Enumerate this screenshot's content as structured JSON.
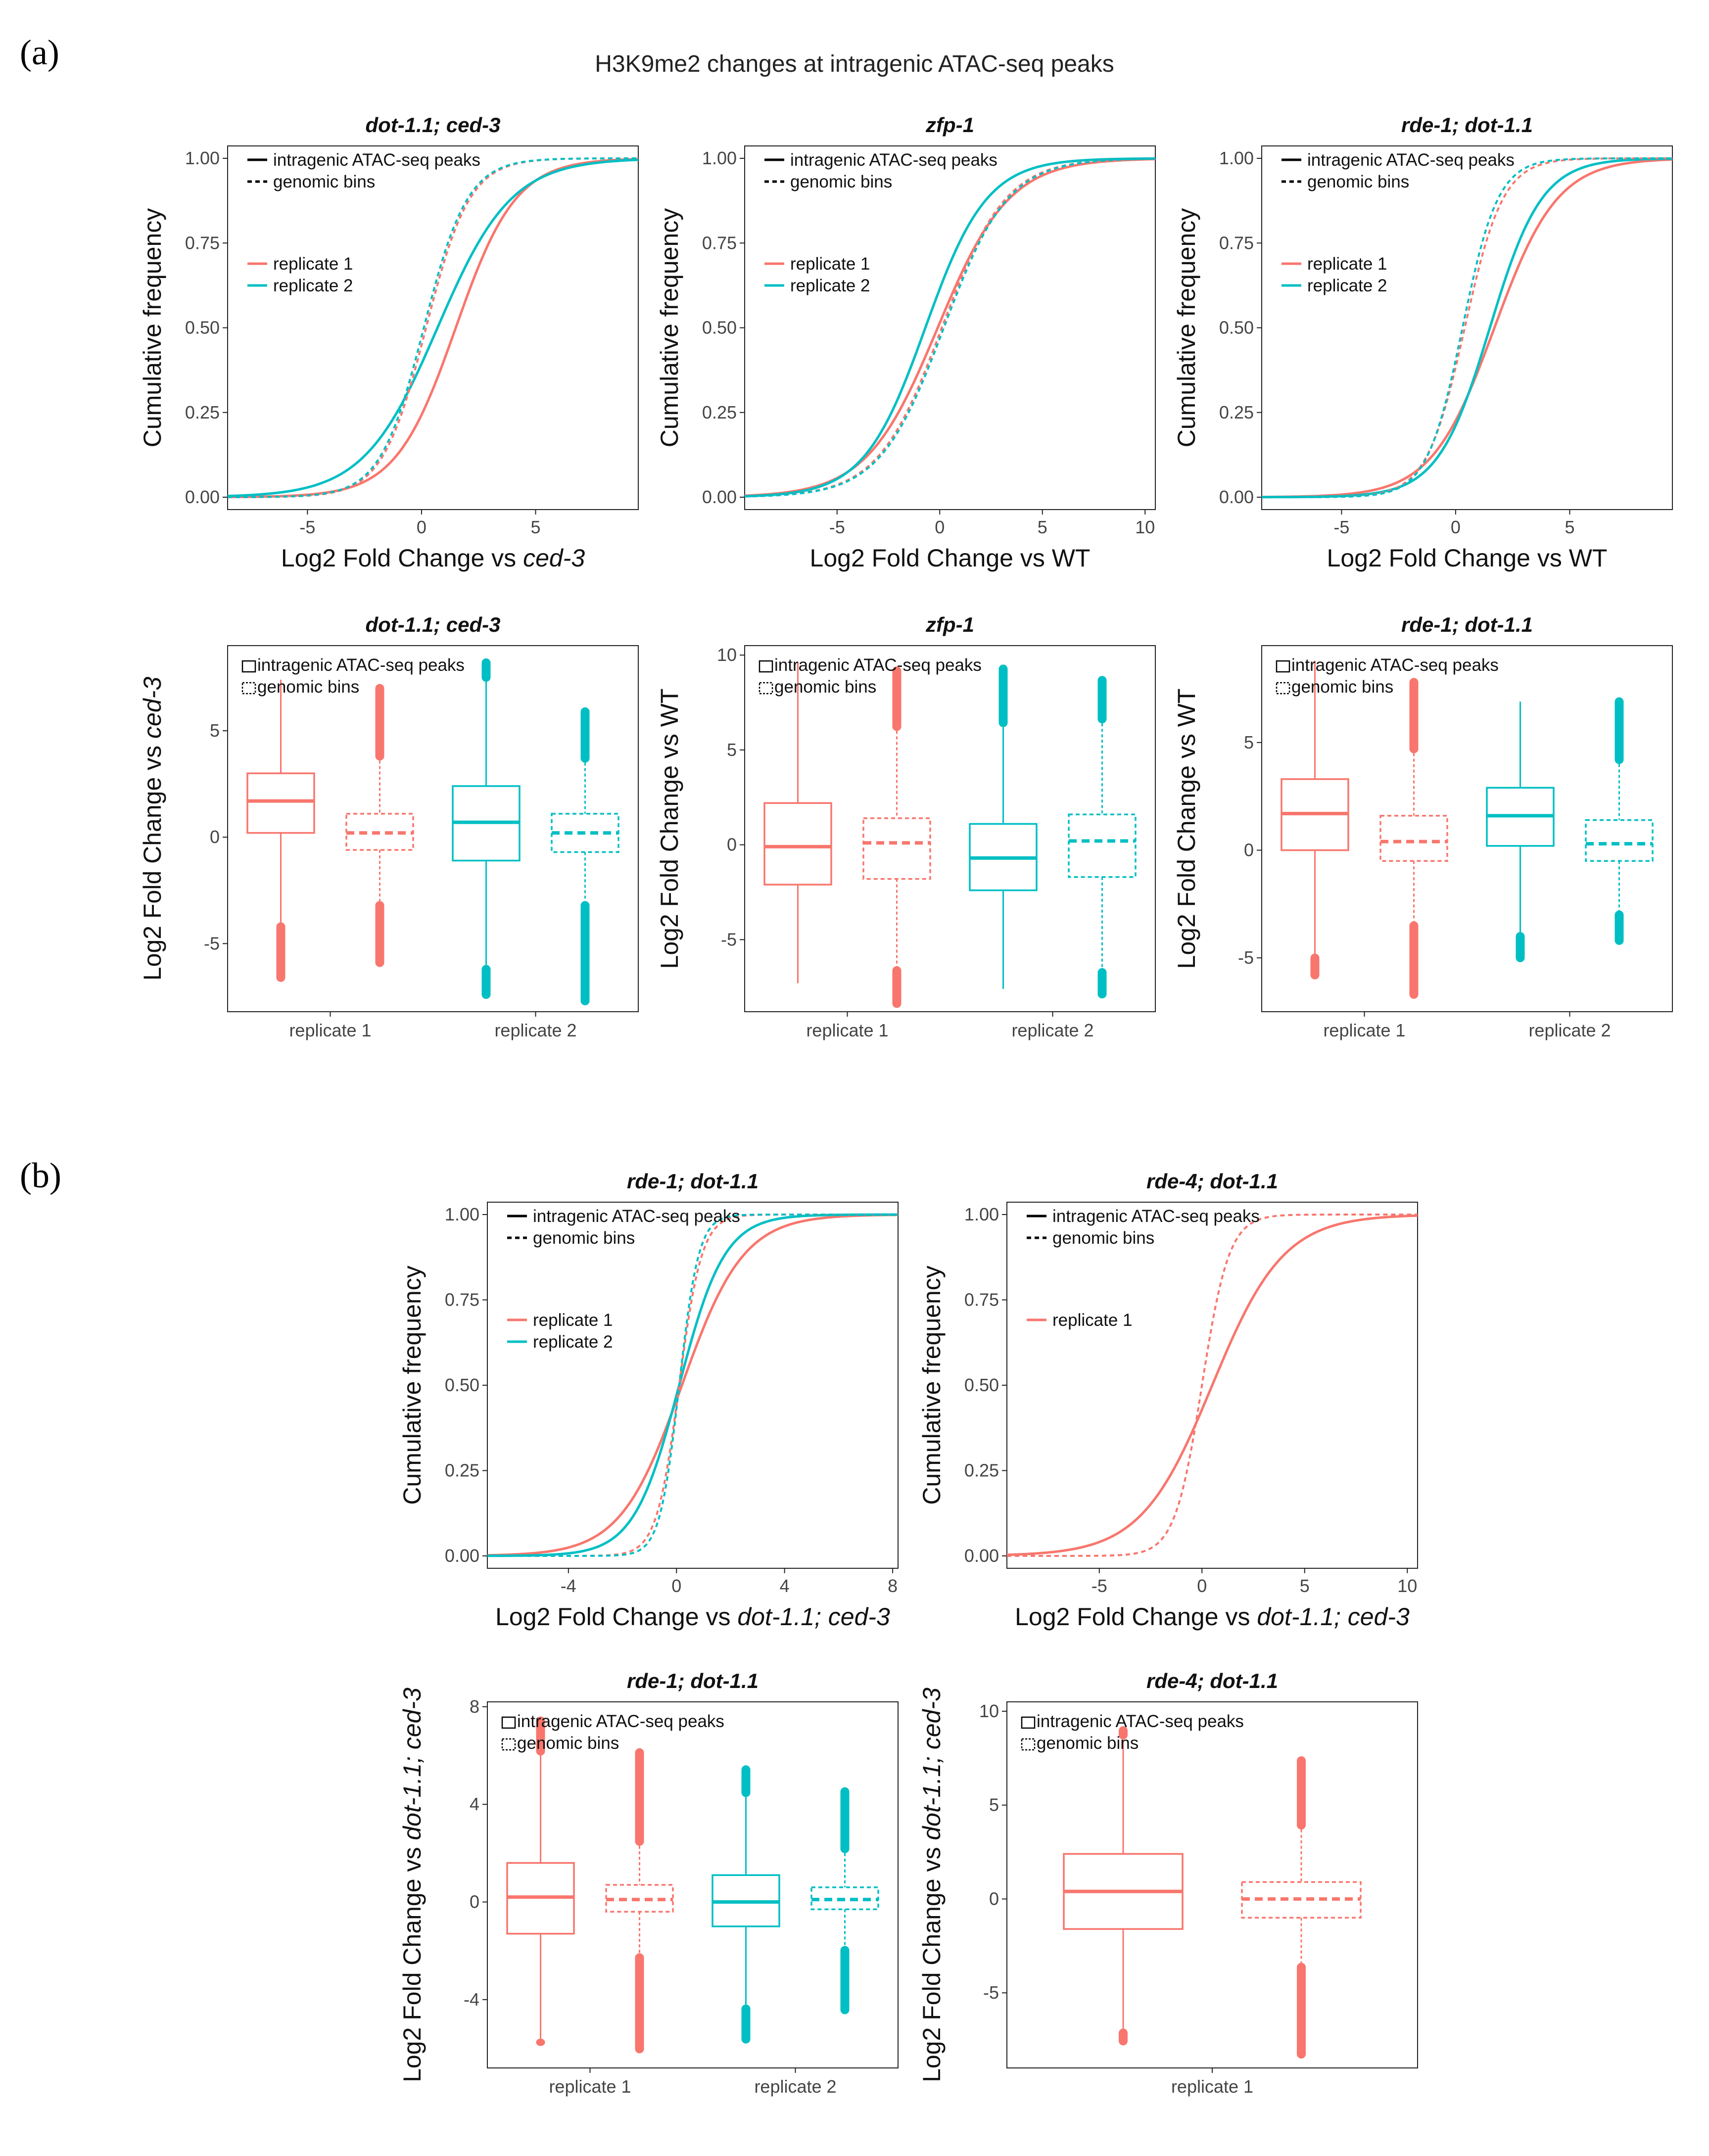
{
  "figure": {
    "panel_a_label": "(a)",
    "panel_b_label": "(b)",
    "main_title": "H3K9me2 changes at intragenic ATAC-seq peaks"
  },
  "colors": {
    "replicate_1": "#F8766D",
    "replicate_2": "#00BFC4",
    "axis": "#222222"
  },
  "chart_data": [
    {
      "id": "a-ecdf-1",
      "type": "line",
      "title": "dot-1.1; ced-3",
      "xlabel": "Log2 Fold Change vs ",
      "xlabel_italic": "ced-3",
      "ylabel": "Cumulative frequency",
      "xlim": [
        -8.5,
        9.5
      ],
      "ylim": [
        0,
        1
      ],
      "x_ticks": [
        -5,
        0,
        5
      ],
      "x_tick_labels": [
        "-5",
        "0",
        "5"
      ],
      "y_ticks": [
        0,
        0.25,
        0.5,
        0.75,
        1
      ],
      "y_tick_labels": [
        "0.00",
        "0.25",
        "0.50",
        "0.75",
        "1.00"
      ],
      "legend": {
        "peaks_label": "intragenic ATAC-seq peaks",
        "bins_label": "genomic bins",
        "replicate_labels": [
          "replicate 1",
          "replicate 2"
        ]
      },
      "series": [
        {
          "name": "replicate 1",
          "kind": "intragenic ATAC-seq peaks",
          "median": 1.5,
          "spread": 2.2
        },
        {
          "name": "replicate 2",
          "kind": "intragenic ATAC-seq peaks",
          "median": 0.7,
          "spread": 2.7
        },
        {
          "name": "replicate 1",
          "kind": "genomic bins",
          "median": 0.2,
          "spread": 1.6
        },
        {
          "name": "replicate 2",
          "kind": "genomic bins",
          "median": 0.1,
          "spread": 1.6
        }
      ]
    },
    {
      "id": "a-ecdf-2",
      "type": "line",
      "title": "zfp-1",
      "xlabel": "Log2 Fold Change vs WT",
      "xlabel_italic": "",
      "ylabel": "Cumulative frequency",
      "xlim": [
        -9.5,
        10.5
      ],
      "ylim": [
        0,
        1
      ],
      "x_ticks": [
        -5,
        0,
        5,
        10
      ],
      "x_tick_labels": [
        "-5",
        "0",
        "5",
        "10"
      ],
      "y_ticks": [
        0,
        0.25,
        0.5,
        0.75,
        1
      ],
      "y_tick_labels": [
        "0.00",
        "0.25",
        "0.50",
        "0.75",
        "1.00"
      ],
      "legend": {
        "peaks_label": "intragenic ATAC-seq peaks",
        "bins_label": "genomic bins",
        "replicate_labels": [
          "replicate 1",
          "replicate 2"
        ]
      },
      "series": [
        {
          "name": "replicate 1",
          "kind": "intragenic ATAC-seq peaks",
          "median": -0.1,
          "spread": 2.9
        },
        {
          "name": "replicate 2",
          "kind": "intragenic ATAC-seq peaks",
          "median": -0.7,
          "spread": 2.5
        },
        {
          "name": "replicate 1",
          "kind": "genomic bins",
          "median": 0.1,
          "spread": 2.6
        },
        {
          "name": "replicate 2",
          "kind": "genomic bins",
          "median": 0.2,
          "spread": 2.6
        }
      ]
    },
    {
      "id": "a-ecdf-3",
      "type": "line",
      "title": "rde-1; dot-1.1",
      "xlabel": "Log2 Fold Change vs WT",
      "xlabel_italic": "",
      "ylabel": "Cumulative frequency",
      "xlim": [
        -8.5,
        9.5
      ],
      "ylim": [
        0,
        1
      ],
      "x_ticks": [
        -5,
        0,
        5
      ],
      "x_tick_labels": [
        "-5",
        "0",
        "5"
      ],
      "y_ticks": [
        0,
        0.25,
        0.5,
        0.75,
        1
      ],
      "y_tick_labels": [
        "0.00",
        "0.25",
        "0.50",
        "0.75",
        "1.00"
      ],
      "legend": {
        "peaks_label": "intragenic ATAC-seq peaks",
        "bins_label": "genomic bins",
        "replicate_labels": [
          "replicate 1",
          "replicate 2"
        ]
      },
      "series": [
        {
          "name": "replicate 1",
          "kind": "intragenic ATAC-seq peaks",
          "median": 1.7,
          "spread": 2.3
        },
        {
          "name": "replicate 2",
          "kind": "intragenic ATAC-seq peaks",
          "median": 1.5,
          "spread": 1.9
        },
        {
          "name": "replicate 1",
          "kind": "genomic bins",
          "median": 0.4,
          "spread": 1.4
        },
        {
          "name": "replicate 2",
          "kind": "genomic bins",
          "median": 0.3,
          "spread": 1.3
        }
      ]
    },
    {
      "id": "a-box-1",
      "type": "box",
      "title": "dot-1.1; ced-3",
      "xlabel": "",
      "ylabel": "Log2 Fold Change vs ",
      "ylabel_italic": "ced-3",
      "ylim": [
        -8.2,
        9.0
      ],
      "y_ticks": [
        -5,
        0,
        5
      ],
      "y_tick_labels": [
        "-5",
        "0",
        "5"
      ],
      "categories": [
        "replicate 1",
        "replicate 2"
      ],
      "legend": {
        "peaks_label": "intragenic ATAC-seq peaks",
        "bins_label": "genomic bins"
      },
      "boxes": [
        {
          "group": "replicate 1",
          "kind": "intragenic ATAC-seq peaks",
          "q1": 0.2,
          "median": 1.7,
          "q3": 3.0,
          "whisker_low": -4.0,
          "whisker_high": 7.4,
          "out_low": -6.8,
          "out_high": null
        },
        {
          "group": "replicate 1",
          "kind": "genomic bins",
          "q1": -0.6,
          "median": 0.2,
          "q3": 1.1,
          "whisker_low": -3.0,
          "whisker_high": 3.6,
          "out_low": -6.1,
          "out_high": 7.2
        },
        {
          "group": "replicate 2",
          "kind": "intragenic ATAC-seq peaks",
          "q1": -1.1,
          "median": 0.7,
          "q3": 2.4,
          "whisker_low": -6.0,
          "whisker_high": 7.3,
          "out_low": -7.6,
          "out_high": 8.4
        },
        {
          "group": "replicate 2",
          "kind": "genomic bins",
          "q1": -0.7,
          "median": 0.2,
          "q3": 1.1,
          "whisker_low": -3.0,
          "whisker_high": 3.5,
          "out_low": -7.9,
          "out_high": 6.1
        }
      ]
    },
    {
      "id": "a-box-2",
      "type": "box",
      "title": "zfp-1",
      "xlabel": "",
      "ylabel": "Log2 Fold Change vs WT",
      "ylabel_italic": "",
      "ylim": [
        -8.8,
        10.5
      ],
      "y_ticks": [
        -5,
        0,
        5,
        10
      ],
      "y_tick_labels": [
        "-5",
        "0",
        "5",
        "10"
      ],
      "categories": [
        "replicate 1",
        "replicate 2"
      ],
      "legend": {
        "peaks_label": "intragenic ATAC-seq peaks",
        "bins_label": "genomic bins"
      },
      "boxes": [
        {
          "group": "replicate 1",
          "kind": "intragenic ATAC-seq peaks",
          "q1": -2.1,
          "median": -0.1,
          "q3": 2.2,
          "whisker_low": -7.3,
          "whisker_high": 9.6,
          "out_low": null,
          "out_high": null
        },
        {
          "group": "replicate 1",
          "kind": "genomic bins",
          "q1": -1.8,
          "median": 0.1,
          "q3": 1.4,
          "whisker_low": -6.4,
          "whisker_high": 6.0,
          "out_low": -8.6,
          "out_high": 9.4
        },
        {
          "group": "replicate 2",
          "kind": "intragenic ATAC-seq peaks",
          "q1": -2.4,
          "median": -0.7,
          "q3": 1.1,
          "whisker_low": -7.6,
          "whisker_high": 6.2,
          "out_low": null,
          "out_high": 9.5
        },
        {
          "group": "replicate 2",
          "kind": "genomic bins",
          "q1": -1.7,
          "median": 0.2,
          "q3": 1.6,
          "whisker_low": -6.5,
          "whisker_high": 6.4,
          "out_low": -8.1,
          "out_high": 8.9
        }
      ]
    },
    {
      "id": "a-box-3",
      "type": "box",
      "title": "rde-1; dot-1.1",
      "xlabel": "",
      "ylabel": "Log2 Fold Change vs WT",
      "ylabel_italic": "",
      "ylim": [
        -7.5,
        9.5
      ],
      "y_ticks": [
        -5,
        0,
        5
      ],
      "y_tick_labels": [
        "-5",
        "0",
        "5"
      ],
      "categories": [
        "replicate 1",
        "replicate 2"
      ],
      "legend": {
        "peaks_label": "intragenic ATAC-seq peaks",
        "bins_label": "genomic bins"
      },
      "boxes": [
        {
          "group": "replicate 1",
          "kind": "intragenic ATAC-seq peaks",
          "q1": 0.0,
          "median": 1.7,
          "q3": 3.3,
          "whisker_low": -4.8,
          "whisker_high": 8.8,
          "out_low": -6.0,
          "out_high": null
        },
        {
          "group": "replicate 1",
          "kind": "genomic bins",
          "q1": -0.5,
          "median": 0.4,
          "q3": 1.6,
          "whisker_low": -3.3,
          "whisker_high": 4.5,
          "out_low": -6.9,
          "out_high": 8.0
        },
        {
          "group": "replicate 2",
          "kind": "intragenic ATAC-seq peaks",
          "q1": 0.2,
          "median": 1.6,
          "q3": 2.9,
          "whisker_low": -3.8,
          "whisker_high": 6.9,
          "out_low": -5.2,
          "out_high": null
        },
        {
          "group": "replicate 2",
          "kind": "genomic bins",
          "q1": -0.5,
          "median": 0.3,
          "q3": 1.4,
          "whisker_low": -2.8,
          "whisker_high": 4.0,
          "out_low": -4.4,
          "out_high": 7.1
        }
      ]
    },
    {
      "id": "b-ecdf-1",
      "type": "line",
      "title": "rde-1; dot-1.1",
      "xlabel": "Log2 Fold Change vs ",
      "xlabel_italic": "dot-1.1; ced-3",
      "ylabel": "Cumulative frequency",
      "xlim": [
        -7,
        8.2
      ],
      "ylim": [
        0,
        1
      ],
      "x_ticks": [
        -4,
        0,
        4,
        8
      ],
      "x_tick_labels": [
        "-4",
        "0",
        "4",
        "8"
      ],
      "y_ticks": [
        0,
        0.25,
        0.5,
        0.75,
        1
      ],
      "y_tick_labels": [
        "0.00",
        "0.25",
        "0.50",
        "0.75",
        "1.00"
      ],
      "legend": {
        "peaks_label": "intragenic ATAC-seq peaks",
        "bins_label": "genomic bins",
        "replicate_labels": [
          "replicate 1",
          "replicate 2"
        ]
      },
      "series": [
        {
          "name": "replicate 1",
          "kind": "intragenic ATAC-seq peaks",
          "median": 0.2,
          "spread": 1.9
        },
        {
          "name": "replicate 2",
          "kind": "intragenic ATAC-seq peaks",
          "median": 0.1,
          "spread": 1.4
        },
        {
          "name": "replicate 1",
          "kind": "genomic bins",
          "median": 0.1,
          "spread": 0.7
        },
        {
          "name": "replicate 2",
          "kind": "genomic bins",
          "median": 0.1,
          "spread": 0.6
        }
      ]
    },
    {
      "id": "b-ecdf-2",
      "type": "line",
      "title": "rde-4; dot-1.1",
      "xlabel": "Log2 Fold Change vs ",
      "xlabel_italic": "dot-1.1; ced-3",
      "ylabel": "Cumulative frequency",
      "xlim": [
        -9.5,
        10.5
      ],
      "ylim": [
        0,
        1
      ],
      "x_ticks": [
        -5,
        0,
        5,
        10
      ],
      "x_tick_labels": [
        "-5",
        "0",
        "5",
        "10"
      ],
      "y_ticks": [
        0,
        0.25,
        0.5,
        0.75,
        1
      ],
      "y_tick_labels": [
        "0.00",
        "0.25",
        "0.50",
        "0.75",
        "1.00"
      ],
      "legend": {
        "peaks_label": "intragenic ATAC-seq peaks",
        "bins_label": "genomic bins",
        "replicate_labels": [
          "replicate 1"
        ]
      },
      "series": [
        {
          "name": "replicate 1",
          "kind": "intragenic ATAC-seq peaks",
          "median": 0.5,
          "spread": 2.9
        },
        {
          "name": "replicate 1",
          "kind": "genomic bins",
          "median": 0.0,
          "spread": 1.1
        }
      ]
    },
    {
      "id": "b-box-1",
      "type": "box",
      "title": "rde-1; dot-1.1",
      "xlabel": "",
      "ylabel": "Log2 Fold Change vs ",
      "ylabel_italic": "dot-1.1; ced-3",
      "ylim": [
        -6.8,
        8.2
      ],
      "y_ticks": [
        -4,
        0,
        4,
        8
      ],
      "y_tick_labels": [
        "-4",
        "0",
        "4",
        "8"
      ],
      "categories": [
        "replicate 1",
        "replicate 2"
      ],
      "legend": {
        "peaks_label": "intragenic ATAC-seq peaks",
        "bins_label": "genomic bins"
      },
      "boxes": [
        {
          "group": "replicate 1",
          "kind": "intragenic ATAC-seq peaks",
          "q1": -1.3,
          "median": 0.2,
          "q3": 1.6,
          "whisker_low": -5.6,
          "whisker_high": 6.0,
          "out_low": -5.9,
          "out_high": 7.6
        },
        {
          "group": "replicate 1",
          "kind": "genomic bins",
          "q1": -0.4,
          "median": 0.1,
          "q3": 0.7,
          "whisker_low": -2.1,
          "whisker_high": 2.3,
          "out_low": -6.2,
          "out_high": 6.3
        },
        {
          "group": "replicate 2",
          "kind": "intragenic ATAC-seq peaks",
          "q1": -1.0,
          "median": 0.0,
          "q3": 1.1,
          "whisker_low": -4.2,
          "whisker_high": 4.3,
          "out_low": -5.8,
          "out_high": 5.6
        },
        {
          "group": "replicate 2",
          "kind": "genomic bins",
          "q1": -0.3,
          "median": 0.1,
          "q3": 0.6,
          "whisker_low": -1.8,
          "whisker_high": 2.0,
          "out_low": -4.6,
          "out_high": 4.7
        }
      ]
    },
    {
      "id": "b-box-2",
      "type": "box",
      "title": "rde-4; dot-1.1",
      "xlabel": "",
      "ylabel": "Log2 Fold Change vs ",
      "ylabel_italic": "dot-1.1; ced-3",
      "ylim": [
        -9,
        10.5
      ],
      "y_ticks": [
        -5,
        0,
        5,
        10
      ],
      "y_tick_labels": [
        "-5",
        "0",
        "5",
        "10"
      ],
      "categories": [
        "replicate 1"
      ],
      "legend": {
        "peaks_label": "intragenic ATAC-seq peaks",
        "bins_label": "genomic bins"
      },
      "boxes": [
        {
          "group": "replicate 1",
          "kind": "intragenic ATAC-seq peaks",
          "q1": -1.6,
          "median": 0.4,
          "q3": 2.4,
          "whisker_low": -6.9,
          "whisker_high": 8.5,
          "out_low": -7.8,
          "out_high": 9.2
        },
        {
          "group": "replicate 1",
          "kind": "genomic bins",
          "q1": -1.0,
          "median": 0.0,
          "q3": 0.9,
          "whisker_low": -3.4,
          "whisker_high": 3.7,
          "out_low": -8.5,
          "out_high": 7.6
        }
      ]
    }
  ]
}
